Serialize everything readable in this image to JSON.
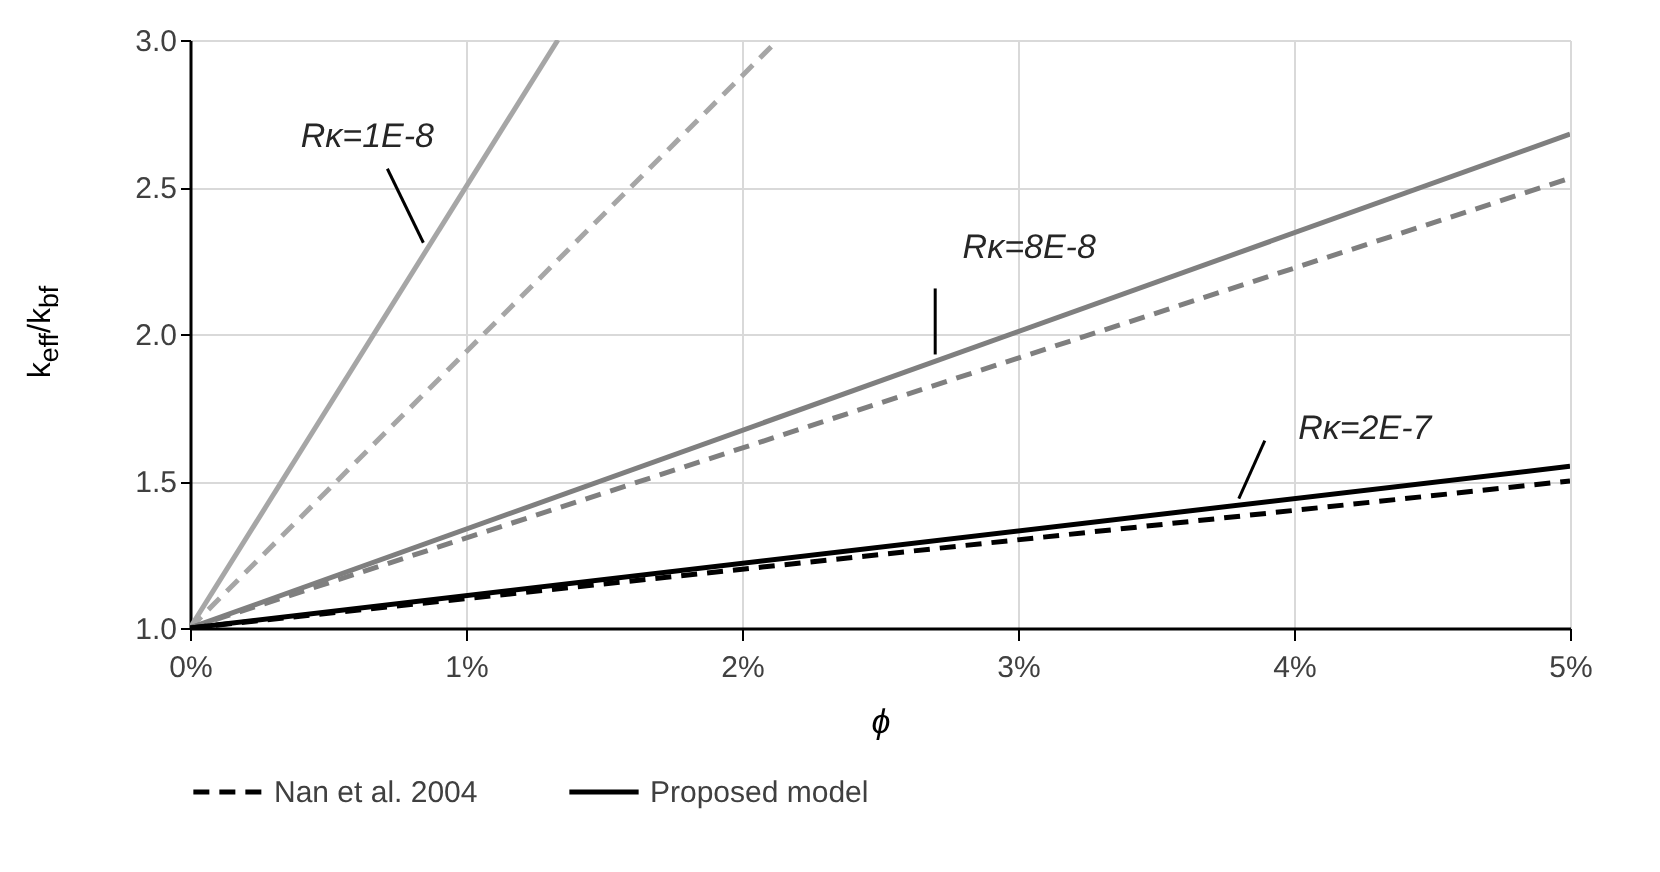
{
  "chart_data": {
    "type": "line",
    "xlabel": "ϕ",
    "ylabel": "k$_{eff}$/k$_{bf}$",
    "xlim": [
      0,
      5
    ],
    "ylim": [
      1,
      3
    ],
    "xticks": [
      {
        "value": 0,
        "label": "0%"
      },
      {
        "value": 1,
        "label": "1%"
      },
      {
        "value": 2,
        "label": "2%"
      },
      {
        "value": 3,
        "label": "3%"
      },
      {
        "value": 4,
        "label": "4%"
      },
      {
        "value": 5,
        "label": "5%"
      }
    ],
    "yticks": [
      {
        "value": 1,
        "label": "1.0"
      },
      1.5,
      {
        "value": 2,
        "label": "2.0"
      },
      2.5,
      {
        "value": 3,
        "label": "3.0"
      }
    ],
    "grid": true,
    "legend": "bottom",
    "series": [
      {
        "color": "#a6a6a6",
        "line_style": "solid",
        "x": [
          0,
          1.333
        ],
        "values": [
          1,
          3
        ]
      },
      {
        "color": "#a6a6a6",
        "line_style": "dashed",
        "x": [
          0,
          2.13
        ],
        "values": [
          1,
          3
        ]
      },
      {
        "color": "#7f7f7f",
        "line_style": "solid",
        "x": [
          0,
          5
        ],
        "values": [
          1,
          2.68
        ]
      },
      {
        "color": "#7f7f7f",
        "line_style": "dashed",
        "x": [
          0,
          5
        ],
        "values": [
          1,
          2.53
        ]
      },
      {
        "name": "Nan et al. 2004",
        "color": "#000000",
        "line_style": "dashed",
        "x": [
          0,
          5
        ],
        "values": [
          1,
          1.5
        ]
      },
      {
        "name": "Proposed model",
        "color": "#000000",
        "line_style": "solid",
        "x": [
          0,
          5
        ],
        "values": [
          1,
          1.55
        ]
      }
    ],
    "annotations": [
      {
        "text": "Rκ=1E-8",
        "x": 0.86,
        "y": 2.29
      },
      {
        "text": "Rκ=8E-8",
        "x": 2.7,
        "y": 1.91
      },
      {
        "text": "Rκ=2E-7",
        "x": 3.8,
        "y": 1.42
      }
    ]
  }
}
